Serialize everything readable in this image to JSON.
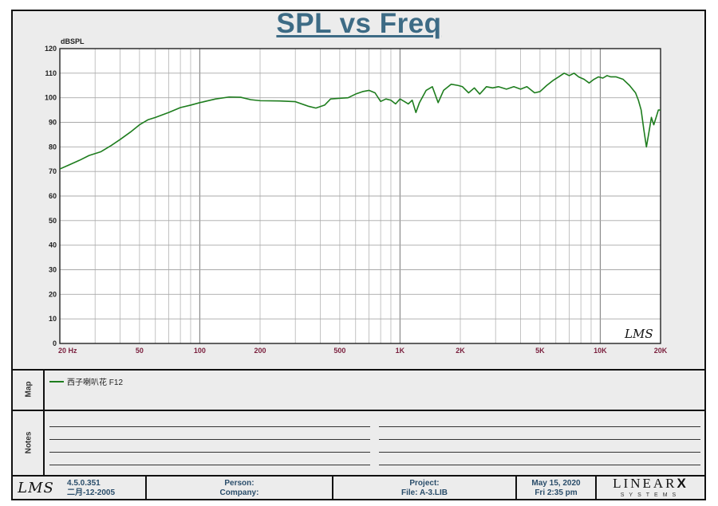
{
  "chart_data": {
    "type": "line",
    "title": "SPL vs Freq",
    "ylabel": "dBSPL",
    "xlabel": "",
    "x_scale": "log",
    "xlim": [
      20,
      20000
    ],
    "ylim": [
      0,
      120
    ],
    "yticks": [
      0,
      10,
      20,
      30,
      40,
      50,
      60,
      70,
      80,
      90,
      100,
      110,
      120
    ],
    "xtick_labels": [
      {
        "x": 20,
        "label": "20  Hz"
      },
      {
        "x": 50,
        "label": "50"
      },
      {
        "x": 100,
        "label": "100"
      },
      {
        "x": 200,
        "label": "200"
      },
      {
        "x": 500,
        "label": "500"
      },
      {
        "x": 1000,
        "label": "1K"
      },
      {
        "x": 2000,
        "label": "2K"
      },
      {
        "x": 5000,
        "label": "5K"
      },
      {
        "x": 10000,
        "label": "10K"
      },
      {
        "x": 20000,
        "label": "20K"
      }
    ],
    "grid": true,
    "series": [
      {
        "name": "西子喇叭花 F12",
        "color": "#1e7d1e",
        "points": [
          [
            20,
            71
          ],
          [
            22,
            72.5
          ],
          [
            25,
            74.5
          ],
          [
            28,
            76.5
          ],
          [
            32,
            78
          ],
          [
            36,
            80.5
          ],
          [
            40,
            83
          ],
          [
            45,
            86
          ],
          [
            50,
            89
          ],
          [
            55,
            91
          ],
          [
            60,
            92
          ],
          [
            70,
            94
          ],
          [
            80,
            96
          ],
          [
            90,
            97
          ],
          [
            100,
            98
          ],
          [
            120,
            99.5
          ],
          [
            140,
            100.3
          ],
          [
            160,
            100.2
          ],
          [
            180,
            99.2
          ],
          [
            200,
            98.8
          ],
          [
            250,
            98.7
          ],
          [
            300,
            98.4
          ],
          [
            350,
            96.5
          ],
          [
            380,
            95.8
          ],
          [
            420,
            97
          ],
          [
            450,
            99.5
          ],
          [
            500,
            99.8
          ],
          [
            550,
            100
          ],
          [
            600,
            101.5
          ],
          [
            650,
            102.5
          ],
          [
            700,
            103
          ],
          [
            750,
            102
          ],
          [
            800,
            98.5
          ],
          [
            850,
            99.5
          ],
          [
            900,
            99
          ],
          [
            950,
            97.5
          ],
          [
            1000,
            99.5
          ],
          [
            1050,
            98.5
          ],
          [
            1100,
            97.5
          ],
          [
            1150,
            99
          ],
          [
            1200,
            94
          ],
          [
            1250,
            98
          ],
          [
            1350,
            103
          ],
          [
            1450,
            104.5
          ],
          [
            1550,
            98
          ],
          [
            1650,
            103
          ],
          [
            1800,
            105.5
          ],
          [
            1950,
            105
          ],
          [
            2050,
            104.5
          ],
          [
            2200,
            102
          ],
          [
            2350,
            104
          ],
          [
            2500,
            101.5
          ],
          [
            2700,
            104.5
          ],
          [
            2900,
            104
          ],
          [
            3100,
            104.5
          ],
          [
            3400,
            103.5
          ],
          [
            3700,
            104.5
          ],
          [
            4000,
            103.5
          ],
          [
            4300,
            104.5
          ],
          [
            4700,
            102
          ],
          [
            5000,
            102.5
          ],
          [
            5400,
            105
          ],
          [
            5800,
            107
          ],
          [
            6200,
            108.5
          ],
          [
            6600,
            110
          ],
          [
            7000,
            109
          ],
          [
            7400,
            110
          ],
          [
            7800,
            108.5
          ],
          [
            8300,
            107.5
          ],
          [
            8800,
            106
          ],
          [
            9300,
            107.5
          ],
          [
            9800,
            108.5
          ],
          [
            10300,
            108
          ],
          [
            10800,
            109
          ],
          [
            11300,
            108.5
          ],
          [
            12000,
            108.5
          ],
          [
            13000,
            107.5
          ],
          [
            14000,
            105
          ],
          [
            15000,
            102
          ],
          [
            15500,
            99
          ],
          [
            16000,
            95
          ],
          [
            16500,
            87
          ],
          [
            17000,
            80
          ],
          [
            17500,
            86
          ],
          [
            18000,
            92
          ],
          [
            18500,
            89
          ],
          [
            19000,
            92
          ],
          [
            19500,
            95
          ],
          [
            20000,
            95
          ]
        ]
      }
    ]
  },
  "logo_text": "LMS",
  "map": {
    "band_label": "Map",
    "legend_text": "西子喇叭花 F12"
  },
  "notes": {
    "band_label": "Notes"
  },
  "footer": {
    "logo_text": "LMS",
    "version": "4.5.0.351",
    "version_date": "二月-12-2005",
    "person_label": "Person:",
    "company_label": "Company:",
    "project_label": "Project:",
    "file_label": "File: A-3.LIB",
    "date": "May 15, 2020",
    "time": "Fri  2:35 pm",
    "brand_main": "LINEAR",
    "brand_x": "X",
    "brand_sub": "SYSTEMS"
  }
}
